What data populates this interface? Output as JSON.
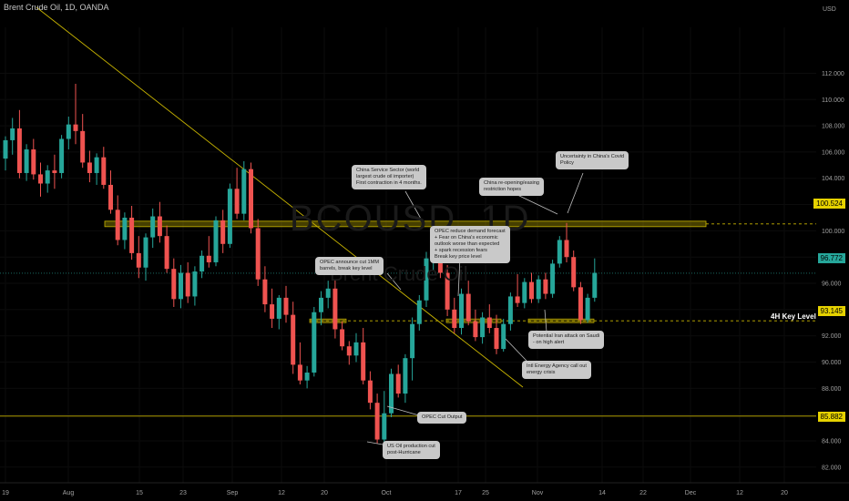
{
  "header": {
    "symbol_title": "Brent Crude Oil, 1D, OANDA"
  },
  "watermark": {
    "ticker": "BCOUSD, 1D",
    "name": "Brent Crude Oil"
  },
  "colors": {
    "up": "#26a69a",
    "down": "#ef5350",
    "key_level": "#c8b400",
    "trendline": "#c8b400"
  },
  "chart_data": {
    "type": "candlestick",
    "currency": "USD",
    "ylim": [
      81.5,
      115.5
    ],
    "y_ticks": [
      82,
      84,
      86,
      88,
      90,
      92,
      94,
      96,
      98,
      100,
      102,
      104,
      106,
      108,
      110,
      112
    ],
    "y_tick_labels": [
      "82.000",
      "84.000",
      "86.000",
      "88.000",
      "90.000",
      "92.000",
      "94.000",
      "96.000",
      "98.000",
      "100.000",
      "102.000",
      "104.000",
      "106.000",
      "108.000",
      "110.000",
      "112.000"
    ],
    "x_tick_labels": [
      "19",
      "Aug",
      "15",
      "23",
      "Sep",
      "12",
      "20",
      "Oct",
      "17",
      "25",
      "Nov",
      "14",
      "22",
      "Dec",
      "12",
      "20"
    ],
    "candles": [
      [
        105.5,
        107.2,
        104.6,
        106.9
      ],
      [
        106.9,
        108.6,
        105.8,
        107.8
      ],
      [
        107.8,
        109.2,
        104.0,
        104.4
      ],
      [
        104.4,
        106.6,
        103.8,
        106.2
      ],
      [
        106.2,
        107.0,
        103.9,
        104.3
      ],
      [
        104.3,
        105.2,
        102.6,
        103.6
      ],
      [
        103.6,
        105.0,
        102.9,
        104.6
      ],
      [
        104.6,
        105.8,
        103.2,
        104.4
      ],
      [
        104.4,
        107.3,
        104.0,
        107.0
      ],
      [
        107.0,
        108.7,
        106.2,
        108.1
      ],
      [
        108.1,
        111.2,
        106.6,
        107.6
      ],
      [
        107.6,
        108.9,
        104.8,
        105.2
      ],
      [
        105.2,
        106.1,
        103.7,
        104.4
      ],
      [
        104.4,
        105.9,
        103.5,
        105.6
      ],
      [
        105.6,
        106.4,
        103.2,
        103.5
      ],
      [
        103.5,
        104.6,
        101.3,
        101.6
      ],
      [
        101.6,
        102.7,
        98.9,
        99.3
      ],
      [
        99.3,
        101.4,
        98.6,
        101.0
      ],
      [
        101.0,
        101.9,
        97.8,
        98.3
      ],
      [
        98.3,
        99.6,
        96.4,
        97.2
      ],
      [
        97.2,
        99.8,
        96.2,
        99.5
      ],
      [
        99.5,
        101.7,
        98.7,
        101.1
      ],
      [
        101.1,
        102.2,
        99.1,
        99.6
      ],
      [
        99.6,
        100.4,
        96.8,
        97.1
      ],
      [
        97.1,
        97.9,
        94.2,
        94.8
      ],
      [
        94.8,
        97.4,
        94.1,
        96.8
      ],
      [
        96.8,
        97.6,
        94.5,
        95.0
      ],
      [
        95.0,
        97.3,
        94.3,
        96.9
      ],
      [
        96.9,
        98.5,
        96.4,
        98.1
      ],
      [
        98.1,
        99.6,
        97.2,
        97.6
      ],
      [
        97.6,
        101.1,
        97.3,
        100.8
      ],
      [
        100.8,
        101.6,
        98.3,
        99.0
      ],
      [
        99.0,
        103.6,
        98.7,
        103.2
      ],
      [
        103.2,
        104.8,
        100.9,
        101.3
      ],
      [
        101.3,
        105.3,
        100.8,
        104.7
      ],
      [
        104.7,
        105.2,
        99.8,
        100.2
      ],
      [
        100.2,
        100.9,
        95.8,
        96.3
      ],
      [
        96.3,
        97.3,
        93.8,
        94.4
      ],
      [
        94.4,
        95.6,
        92.6,
        93.3
      ],
      [
        93.3,
        95.1,
        92.5,
        94.9
      ],
      [
        94.9,
        95.8,
        93.0,
        93.6
      ],
      [
        93.6,
        94.6,
        89.1,
        89.8
      ],
      [
        89.8,
        91.5,
        88.3,
        88.6
      ],
      [
        88.6,
        89.7,
        88.0,
        89.2
      ],
      [
        89.2,
        94.2,
        88.9,
        93.8
      ],
      [
        93.8,
        95.4,
        92.8,
        94.9
      ],
      [
        94.9,
        96.2,
        94.1,
        95.6
      ],
      [
        95.6,
        96.3,
        91.8,
        92.5
      ],
      [
        92.5,
        93.1,
        90.9,
        91.2
      ],
      [
        91.2,
        91.6,
        89.8,
        90.5
      ],
      [
        90.5,
        92.2,
        90.0,
        91.5
      ],
      [
        91.5,
        92.6,
        88.3,
        88.6
      ],
      [
        88.6,
        89.3,
        86.4,
        86.9
      ],
      [
        86.9,
        87.6,
        83.8,
        84.1
      ],
      [
        84.1,
        87.8,
        83.9,
        86.1
      ],
      [
        86.1,
        89.5,
        85.8,
        89.1
      ],
      [
        89.1,
        89.8,
        87.3,
        87.6
      ],
      [
        87.6,
        90.6,
        86.9,
        90.3
      ],
      [
        90.3,
        93.4,
        88.6,
        92.9
      ],
      [
        92.9,
        95.1,
        92.4,
        94.7
      ],
      [
        94.7,
        98.4,
        94.2,
        97.9
      ],
      [
        97.9,
        100.5,
        97.0,
        99.6
      ],
      [
        99.6,
        100.2,
        96.4,
        96.8
      ],
      [
        96.8,
        97.4,
        93.5,
        94.0
      ],
      [
        94.0,
        94.9,
        92.2,
        92.6
      ],
      [
        92.6,
        95.6,
        92.1,
        95.2
      ],
      [
        95.2,
        96.2,
        92.8,
        93.1
      ],
      [
        93.1,
        94.0,
        91.6,
        91.9
      ],
      [
        91.9,
        93.8,
        91.4,
        93.4
      ],
      [
        93.4,
        94.4,
        92.2,
        92.6
      ],
      [
        92.6,
        93.6,
        90.6,
        91.0
      ],
      [
        91.0,
        93.3,
        90.8,
        92.9
      ],
      [
        92.9,
        95.3,
        92.4,
        95.0
      ],
      [
        95.0,
        96.7,
        94.2,
        94.5
      ],
      [
        94.5,
        96.4,
        94.1,
        96.1
      ],
      [
        96.1,
        96.8,
        94.5,
        94.8
      ],
      [
        94.8,
        96.6,
        94.5,
        96.3
      ],
      [
        96.3,
        96.8,
        94.8,
        95.2
      ],
      [
        95.2,
        97.8,
        94.9,
        97.5
      ],
      [
        97.5,
        99.6,
        97.2,
        99.3
      ],
      [
        99.3,
        100.6,
        97.6,
        98.0
      ],
      [
        98.0,
        98.5,
        95.4,
        95.7
      ],
      [
        95.7,
        96.1,
        92.9,
        93.2
      ],
      [
        93.2,
        95.2,
        93.0,
        94.9
      ],
      [
        94.9,
        97.9,
        94.6,
        96.8
      ]
    ],
    "key_levels": [
      {
        "price": 100.524,
        "label": "100.524"
      },
      {
        "price": 93.145,
        "label": "93.145",
        "annotation": "4H Key Level"
      },
      {
        "price": 85.882,
        "label": "85.882"
      }
    ],
    "last_price": {
      "price": 96.772,
      "label": "96.772"
    },
    "annotations": [
      {
        "text": "China Service Sector (world\nlargest crude oil importer)\nFirst contraction in 4 months."
      },
      {
        "text": "China re-opening/easing\nrestriction hopes"
      },
      {
        "text": "Uncertainty in China's Covid\nPolicy"
      },
      {
        "text": "OPEC reduce demand forecast\n+ Fear on China's economic\noutlook worse than expected\n+ spark recession fears\nBreak key price level"
      },
      {
        "text": "OPEC announce cut 1MM\nbarrels, break key level"
      },
      {
        "text": "Potential Iran attack on Saudi\n- on high alert"
      },
      {
        "text": "Intl Energy Agency call out\nenergy crisis"
      },
      {
        "text": "OPEC Cut Output"
      },
      {
        "text": "US Oil production cut\npost-Hurricane"
      }
    ]
  }
}
